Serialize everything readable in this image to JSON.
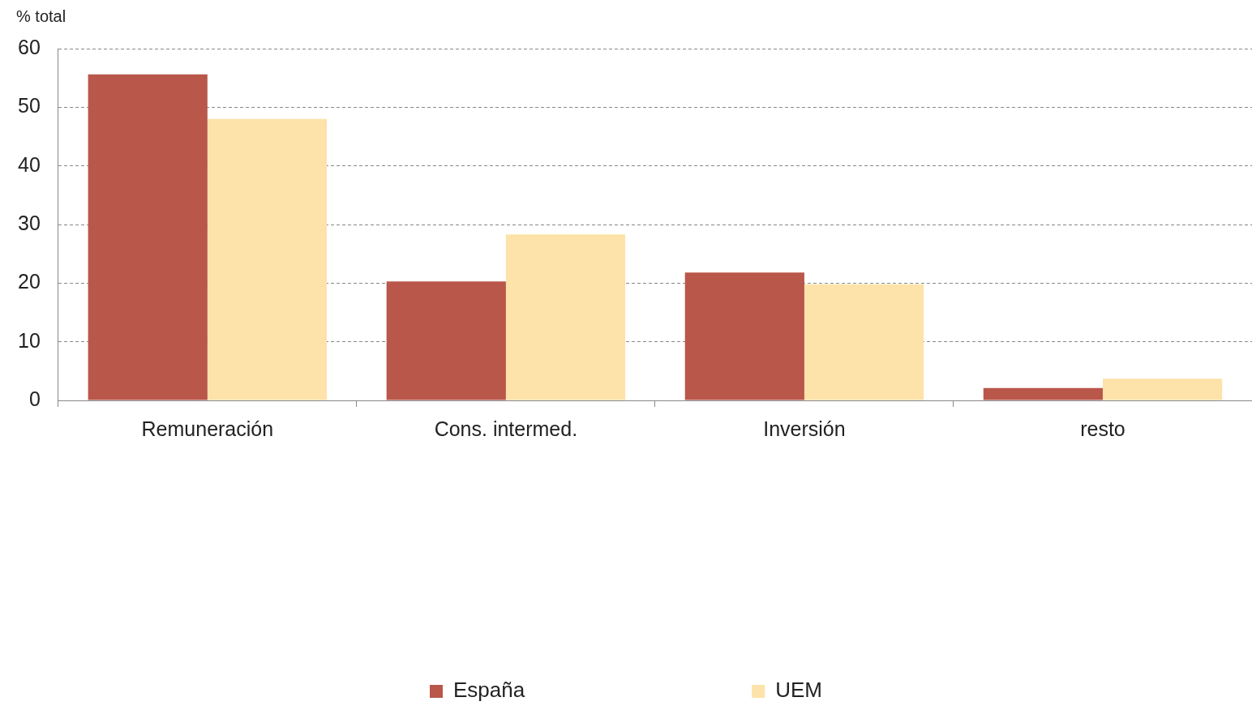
{
  "chart_data": {
    "type": "bar",
    "ylabel": "% total",
    "categories": [
      "Remuneración",
      "Cons. intermed.",
      "Inversión",
      "resto"
    ],
    "series": [
      {
        "name": "España",
        "color": "#b9574a",
        "values": [
          55.6,
          20.3,
          21.8,
          2.1
        ]
      },
      {
        "name": "UEM",
        "color": "#fde2a9",
        "values": [
          48.0,
          28.3,
          19.8,
          3.7
        ]
      }
    ],
    "ylim": [
      0,
      60
    ],
    "yticks": [
      0,
      10,
      20,
      30,
      40,
      50,
      60
    ],
    "grid": "y",
    "legend": "bottom"
  }
}
